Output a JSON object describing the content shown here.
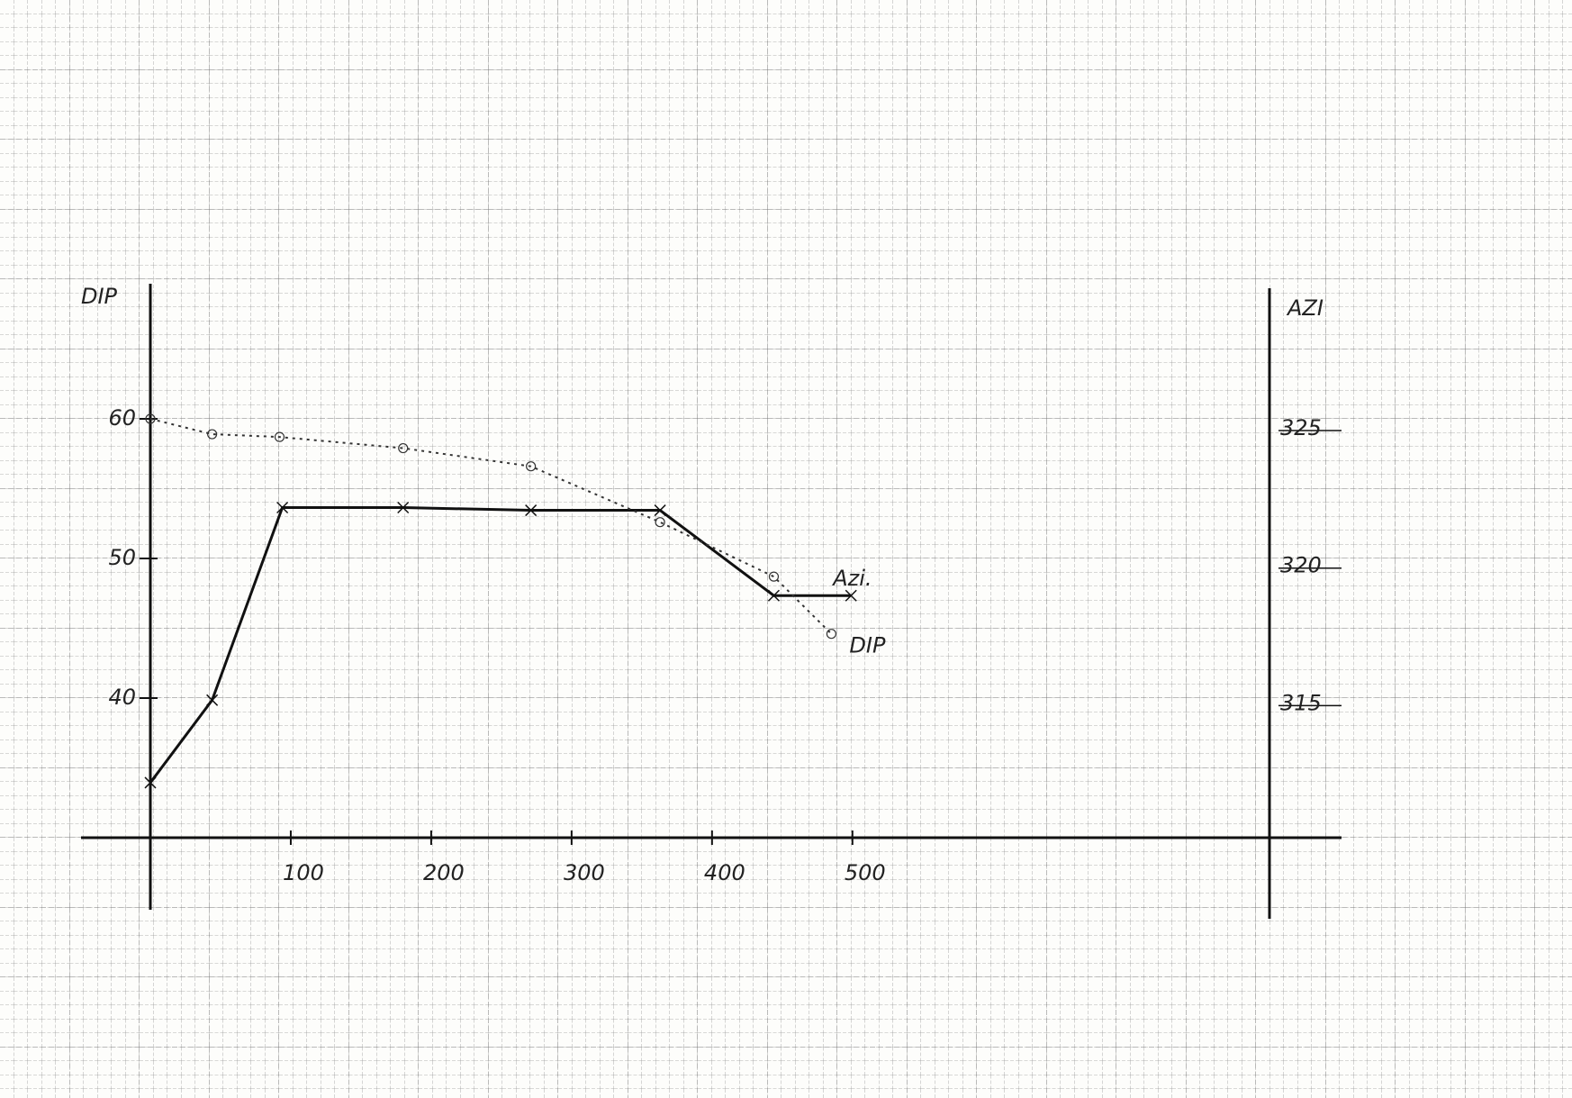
{
  "chart_data": {
    "type": "line",
    "xlim": [
      0,
      797
    ],
    "xticks": [
      100,
      200,
      300,
      400,
      500
    ],
    "ylabel": "DIP",
    "ylim": [
      30,
      70
    ],
    "yticks": [
      40,
      50,
      60
    ],
    "y2label": "AZI",
    "y2lim": [
      310.2,
      330.5
    ],
    "y2ticks": [
      315,
      320,
      325
    ],
    "series": [
      {
        "name": "Azi.",
        "color": "#111111",
        "style": "solid",
        "marker": "x",
        "axis": "y2",
        "x": [
          0,
          44,
          94,
          180,
          271,
          363,
          444,
          499
        ],
        "values": [
          312.2,
          315.2,
          322.2,
          322.2,
          322.1,
          322.1,
          319.0,
          319.0
        ]
      },
      {
        "name": "DIP",
        "color": "#333333",
        "style": "dotted",
        "marker": "o",
        "x": [
          0,
          44,
          92,
          180,
          271,
          363,
          444,
          485
        ],
        "values": [
          60,
          58.9,
          58.7,
          57.9,
          56.6,
          52.6,
          48.7,
          44.6
        ]
      }
    ]
  }
}
